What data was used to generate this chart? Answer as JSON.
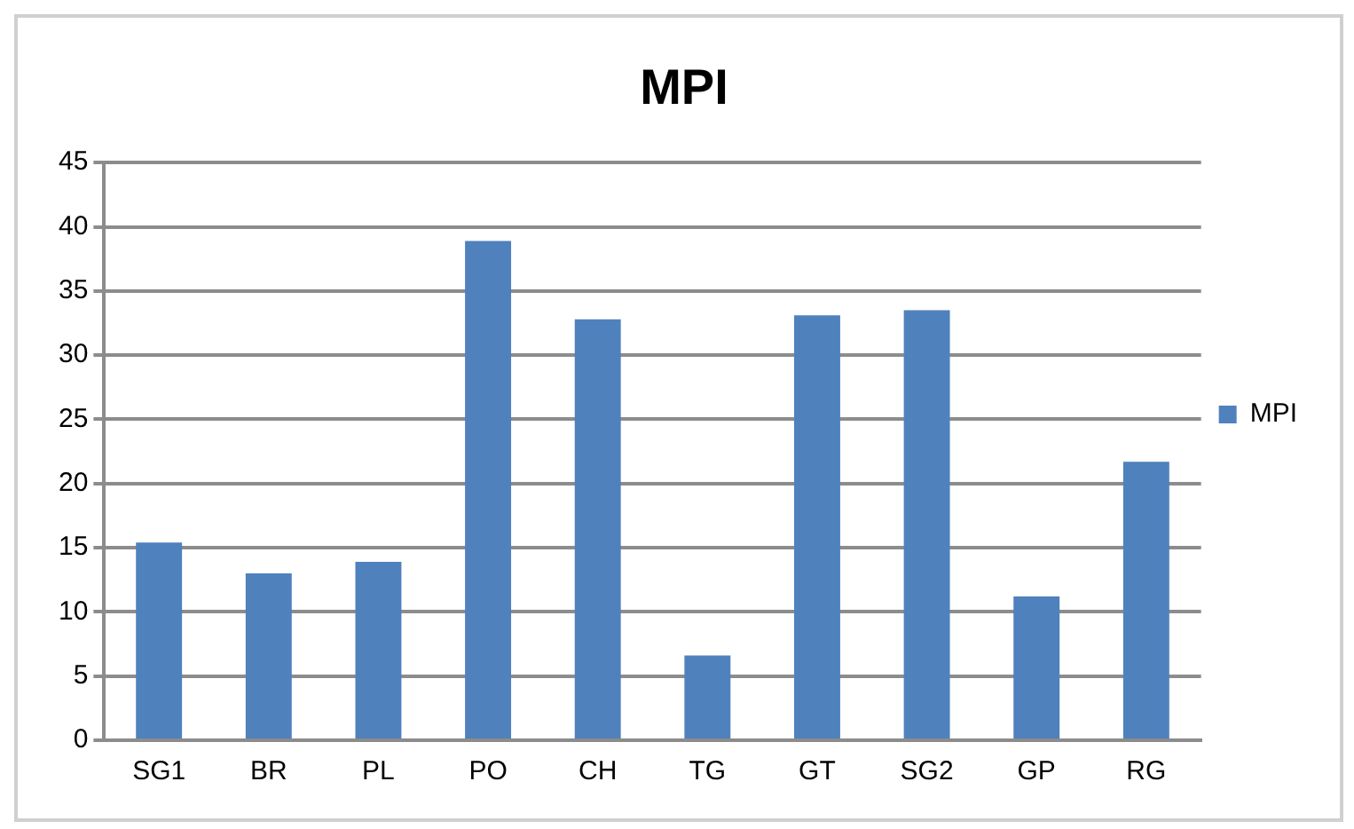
{
  "chart_data": {
    "type": "bar",
    "title": "MPI",
    "categories": [
      "SG1",
      "BR",
      "PL",
      "PO",
      "CH",
      "TG",
      "GT",
      "SG2",
      "GP",
      "RG"
    ],
    "series": [
      {
        "name": "MPI",
        "color": "#4f81bd",
        "values": [
          15.4,
          13.0,
          13.9,
          38.9,
          32.8,
          6.6,
          33.1,
          33.5,
          11.2,
          21.7
        ]
      }
    ],
    "ylim": [
      0,
      45
    ],
    "yticks": [
      0,
      5,
      10,
      15,
      20,
      25,
      30,
      35,
      40,
      45
    ],
    "grid": "y",
    "legend": "right"
  }
}
